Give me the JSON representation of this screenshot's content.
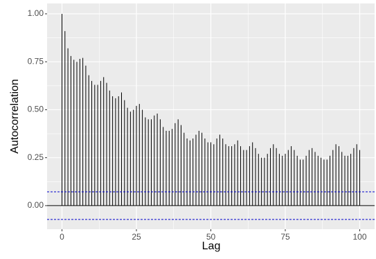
{
  "chart_data": {
    "type": "acf",
    "x_label": "Lag",
    "y_label": "Autocorrelation",
    "x": [
      0,
      1,
      2,
      3,
      4,
      5,
      6,
      7,
      8,
      9,
      10,
      11,
      12,
      13,
      14,
      15,
      16,
      17,
      18,
      19,
      20,
      21,
      22,
      23,
      24,
      25,
      26,
      27,
      28,
      29,
      30,
      31,
      32,
      33,
      34,
      35,
      36,
      37,
      38,
      39,
      40,
      41,
      42,
      43,
      44,
      45,
      46,
      47,
      48,
      49,
      50,
      51,
      52,
      53,
      54,
      55,
      56,
      57,
      58,
      59,
      60,
      61,
      62,
      63,
      64,
      65,
      66,
      67,
      68,
      69,
      70,
      71,
      72,
      73,
      74,
      75,
      76,
      77,
      78,
      79,
      80,
      81,
      82,
      83,
      84,
      85,
      86,
      87,
      88,
      89,
      90,
      91,
      92,
      93,
      94,
      95,
      96,
      97,
      98,
      99,
      100
    ],
    "values": [
      1.0,
      0.91,
      0.82,
      0.78,
      0.76,
      0.75,
      0.765,
      0.77,
      0.73,
      0.68,
      0.65,
      0.63,
      0.63,
      0.65,
      0.67,
      0.64,
      0.6,
      0.57,
      0.56,
      0.57,
      0.59,
      0.55,
      0.51,
      0.49,
      0.5,
      0.52,
      0.53,
      0.5,
      0.46,
      0.45,
      0.45,
      0.47,
      0.48,
      0.45,
      0.41,
      0.39,
      0.39,
      0.4,
      0.43,
      0.45,
      0.42,
      0.38,
      0.35,
      0.34,
      0.35,
      0.37,
      0.39,
      0.38,
      0.35,
      0.33,
      0.33,
      0.32,
      0.35,
      0.37,
      0.35,
      0.32,
      0.31,
      0.31,
      0.32,
      0.34,
      0.31,
      0.29,
      0.29,
      0.31,
      0.33,
      0.3,
      0.27,
      0.25,
      0.25,
      0.27,
      0.3,
      0.32,
      0.3,
      0.27,
      0.26,
      0.27,
      0.29,
      0.31,
      0.29,
      0.26,
      0.24,
      0.24,
      0.26,
      0.29,
      0.3,
      0.28,
      0.26,
      0.25,
      0.24,
      0.24,
      0.26,
      0.29,
      0.32,
      0.31,
      0.28,
      0.26,
      0.26,
      0.27,
      0.3,
      0.32,
      0.29
    ],
    "color": "#000000",
    "confidence_lines": [
      0.072,
      -0.072
    ],
    "confidence_color": "#0000cc",
    "xlim": [
      -5,
      105
    ],
    "ylim": [
      -0.123,
      1.054
    ],
    "xticks": [
      0,
      25,
      50,
      75,
      100
    ],
    "yticks": [
      {
        "value": 0,
        "label": "0.00"
      },
      {
        "value": 0.25,
        "label": "0.25"
      },
      {
        "value": 0.5,
        "label": "0.50"
      },
      {
        "value": 0.75,
        "label": "0.75"
      },
      {
        "value": 1,
        "label": "1.00"
      }
    ],
    "grid": true
  }
}
